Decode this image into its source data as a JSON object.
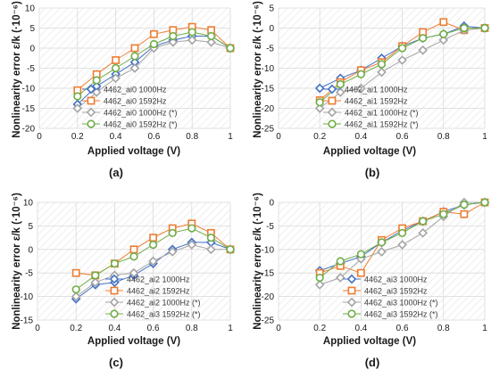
{
  "colors": {
    "blue": "#4472C4",
    "orange": "#ED7D31",
    "gray": "#A5A5A5",
    "green": "#70AD47",
    "grid": "#d9d9d9",
    "hatch": "#e3e3e3",
    "text": "#1a1a1a"
  },
  "chart_data": [
    {
      "type": "line",
      "panel_label": "(a)",
      "xlabel": "Applied voltage (V)",
      "ylabel": "Nonlinearity error ε/k (·10⁻⁶)",
      "x_ticks": [
        "0",
        "0.2",
        "0.4",
        "0.6",
        "0.8",
        "1"
      ],
      "y_ticks": [
        "10",
        "5",
        "0",
        "-5",
        "-10",
        "-15",
        "-20"
      ],
      "xlim": [
        0,
        1
      ],
      "ylim": [
        -20,
        10
      ],
      "legend_position": "bottom-center",
      "x": [
        0.2,
        0.3,
        0.4,
        0.5,
        0.6,
        0.7,
        0.8,
        0.9,
        1.0
      ],
      "series": [
        {
          "name": "4462_ai0 1000Hz",
          "marker": "diamond",
          "color": "#4472C4",
          "values": [
            -14,
            -9.5,
            -6.5,
            -3.5,
            0.5,
            2,
            3,
            3,
            0
          ]
        },
        {
          "name": "4462_ai0 1592Hz",
          "marker": "square",
          "color": "#ED7D31",
          "values": [
            -10.5,
            -6.5,
            -3,
            0,
            3.5,
            4.5,
            5.3,
            4.5,
            0
          ]
        },
        {
          "name": "4462_ai0 1000Hz (*)",
          "marker": "diamond",
          "color": "#A5A5A5",
          "values": [
            -15,
            -11,
            -7.5,
            -5,
            0,
            1.5,
            2,
            1.5,
            0
          ]
        },
        {
          "name": "4462_ai0 1592Hz (*)",
          "marker": "circle",
          "color": "#70AD47",
          "values": [
            -12,
            -8,
            -5,
            -2,
            1,
            3,
            4,
            3,
            0
          ]
        }
      ]
    },
    {
      "type": "line",
      "panel_label": "(b)",
      "xlabel": "Applied voltage (V)",
      "ylabel": "Nonlinearity error ε/k (·10⁻⁶)",
      "x_ticks": [
        "0",
        "0.2",
        "0.4",
        "0.6",
        "0.8",
        "1"
      ],
      "y_ticks": [
        "5",
        "0",
        "-5",
        "-10",
        "-15",
        "-20",
        "-25"
      ],
      "xlim": [
        0,
        1
      ],
      "ylim": [
        -25,
        5
      ],
      "legend_position": "bottom-center",
      "x": [
        0.2,
        0.3,
        0.4,
        0.5,
        0.6,
        0.7,
        0.8,
        0.9,
        1.0
      ],
      "series": [
        {
          "name": "4462_ai1 1000Hz",
          "marker": "diamond",
          "color": "#4472C4",
          "values": [
            -15,
            -12.5,
            -10.5,
            -7.5,
            -4.5,
            -2.5,
            -1.5,
            0.5,
            0
          ]
        },
        {
          "name": "4462_ai1 1592Hz",
          "marker": "square",
          "color": "#ED7D31",
          "values": [
            -18,
            -13.5,
            -10.5,
            -8.5,
            -4.5,
            -1,
            1.5,
            -0.5,
            0
          ]
        },
        {
          "name": "4462_ai1 1000Hz (*)",
          "marker": "diamond",
          "color": "#A5A5A5",
          "values": [
            -20,
            -16,
            -15,
            -11,
            -8,
            -5.5,
            -3,
            -0.5,
            0
          ]
        },
        {
          "name": "4462_ai1 1592Hz (*)",
          "marker": "circle",
          "color": "#70AD47",
          "values": [
            -18.5,
            -14,
            -11.5,
            -9,
            -5,
            -2.5,
            -1.5,
            0,
            0
          ]
        }
      ]
    },
    {
      "type": "line",
      "panel_label": "(c)",
      "xlabel": "Applied voltage (V)",
      "ylabel": "Nonlinearity error ε/k (·10⁻⁶)",
      "x_ticks": [
        "0",
        "0.2",
        "0.4",
        "0.6",
        "0.8",
        "1"
      ],
      "y_ticks": [
        "10",
        "5",
        "0",
        "-5",
        "-10",
        "-15"
      ],
      "xlim": [
        0,
        1
      ],
      "ylim": [
        -15,
        10
      ],
      "legend_position": "bottom-center",
      "x": [
        0.2,
        0.3,
        0.4,
        0.5,
        0.6,
        0.7,
        0.8,
        0.9,
        1.0
      ],
      "series": [
        {
          "name": "4462_ai2 1000Hz",
          "marker": "diamond",
          "color": "#4472C4",
          "values": [
            -10.5,
            -7.5,
            -7,
            -5.5,
            -3,
            0,
            1.5,
            1.5,
            0
          ]
        },
        {
          "name": "4462_ai2 1592Hz",
          "marker": "square",
          "color": "#ED7D31",
          "values": [
            -5,
            -5.5,
            -3,
            0,
            2.5,
            4.5,
            5.5,
            3.5,
            0
          ]
        },
        {
          "name": "4462_ai2 1000Hz (*)",
          "marker": "diamond",
          "color": "#A5A5A5",
          "values": [
            -10,
            -7,
            -5.5,
            -5,
            -2.5,
            -0.5,
            1,
            0,
            0
          ]
        },
        {
          "name": "4462_ai3 1592Hz (*)",
          "marker": "circle",
          "color": "#70AD47",
          "values": [
            -8.5,
            -5.5,
            -3,
            -1.5,
            1,
            3.5,
            4.5,
            2.5,
            0
          ]
        }
      ]
    },
    {
      "type": "line",
      "panel_label": "(d)",
      "xlabel": "Applied voltage (V)",
      "ylabel": "Nonlinearity error ε/k (·10⁻⁶)",
      "x_ticks": [
        "0",
        "0.2",
        "0.4",
        "0.6",
        "0.8",
        "1"
      ],
      "y_ticks": [
        "0",
        "-5",
        "-10",
        "-15",
        "-20",
        "-25"
      ],
      "xlim": [
        0,
        1
      ],
      "ylim": [
        -25,
        0
      ],
      "legend_position": "bottom-center",
      "x": [
        0.2,
        0.3,
        0.4,
        0.5,
        0.6,
        0.7,
        0.8,
        0.9,
        1.0
      ],
      "series": [
        {
          "name": "4462_ai3 1000Hz",
          "marker": "diamond",
          "color": "#4472C4",
          "values": [
            -14.5,
            -13,
            -11.5,
            -8.5,
            -6,
            -4,
            -2,
            -0.5,
            0
          ]
        },
        {
          "name": "4462_ai3 1592Hz",
          "marker": "square",
          "color": "#ED7D31",
          "values": [
            -15,
            -13.5,
            -15,
            -8,
            -5.5,
            -4,
            -2,
            -2.5,
            0
          ]
        },
        {
          "name": "4462_ai3 1000Hz (*)",
          "marker": "diamond",
          "color": "#A5A5A5",
          "values": [
            -17.5,
            -16,
            -12,
            -10.5,
            -9,
            -6.5,
            -3,
            0,
            0
          ]
        },
        {
          "name": "4462_ai3 1592Hz (*)",
          "marker": "circle",
          "color": "#70AD47",
          "values": [
            -16,
            -12.5,
            -11,
            -8.5,
            -6.5,
            -4,
            -2.5,
            -0.5,
            0
          ]
        }
      ]
    }
  ]
}
